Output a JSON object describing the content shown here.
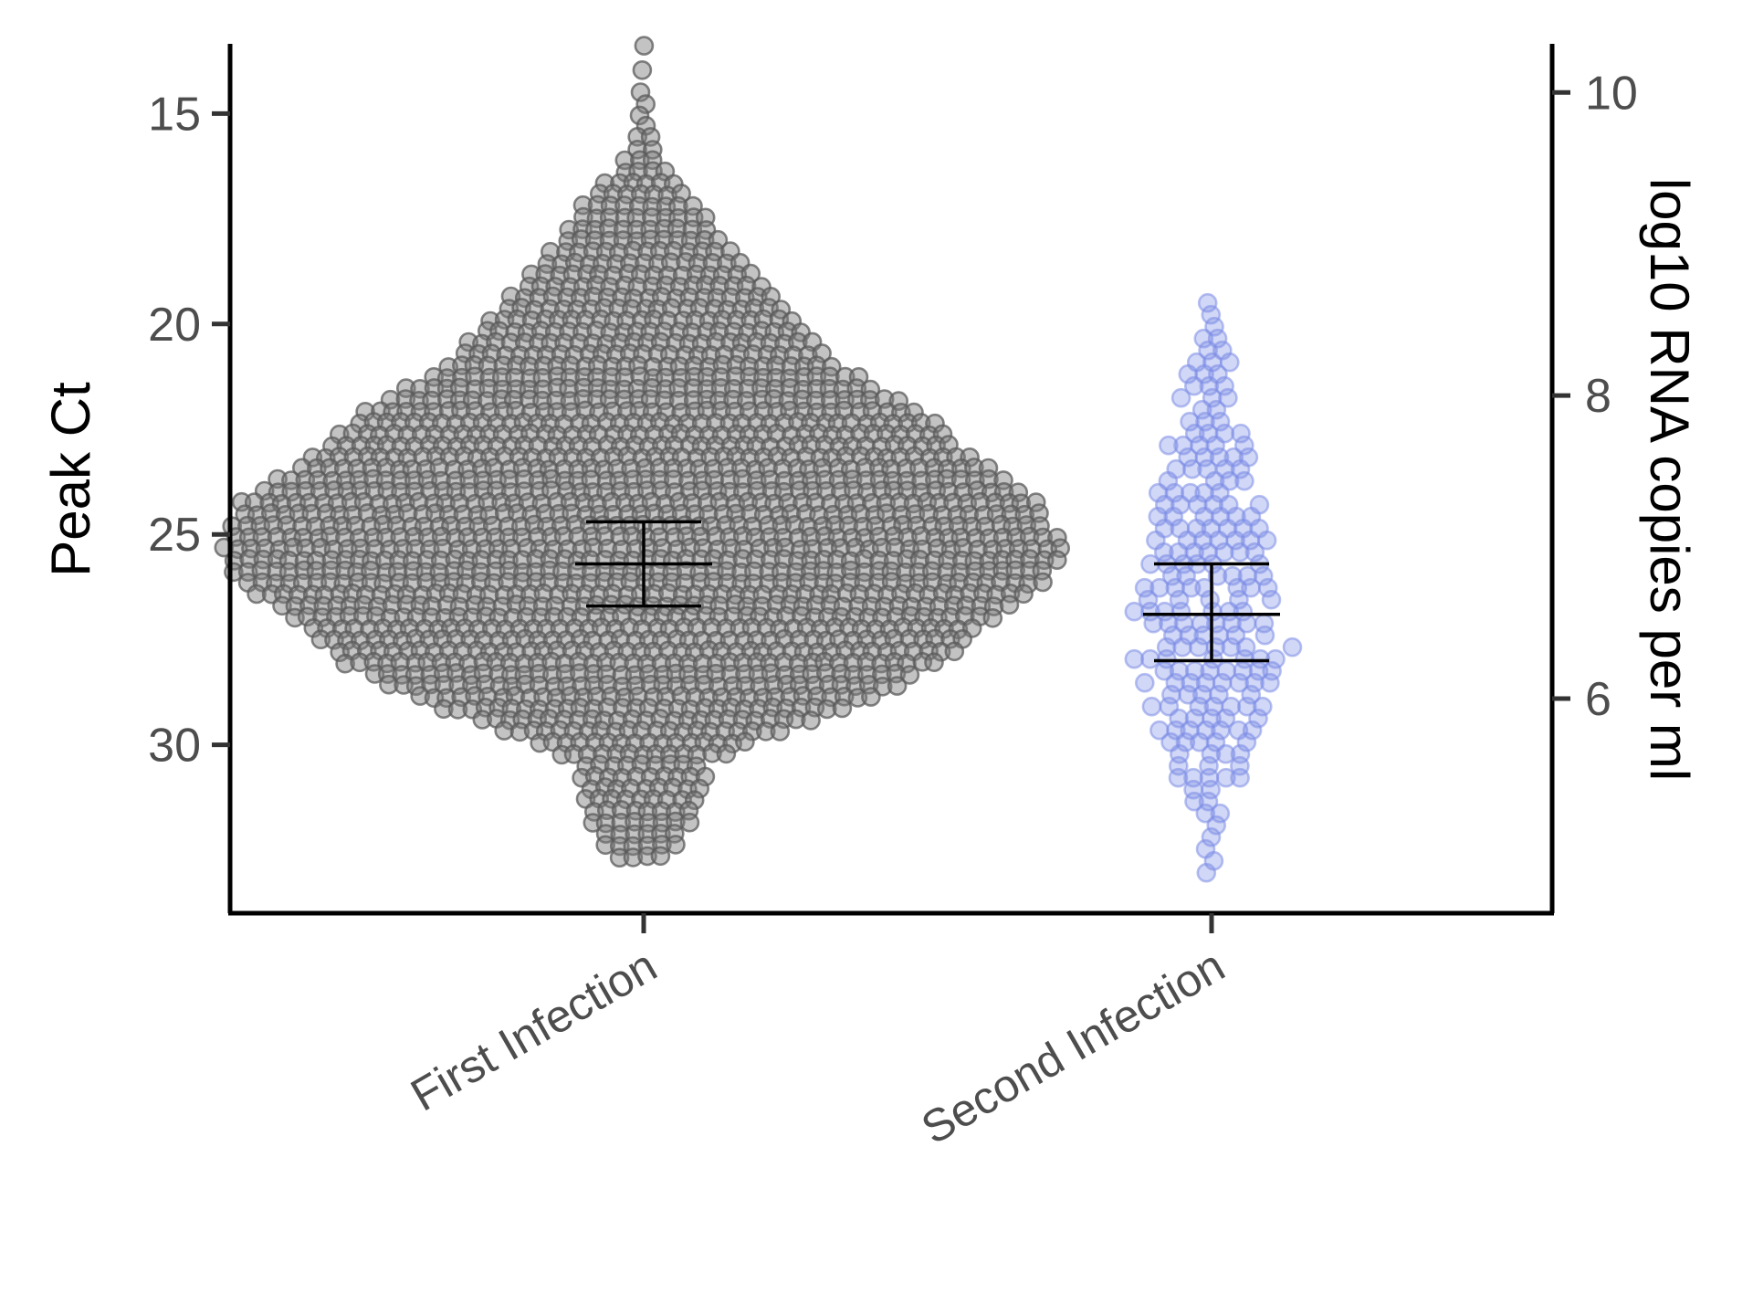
{
  "chart_data": {
    "type": "scatter",
    "subtype": "beeswarm",
    "title": "",
    "xlabel": "",
    "ylabel": "Peak Ct",
    "y2label": "log10 RNA copies per ml",
    "y_reversed": true,
    "ylim": [
      34,
      13.3
    ],
    "y_ticks": [
      "15",
      "20",
      "25",
      "30"
    ],
    "y2_ticks": [
      "10",
      "8",
      "6"
    ],
    "y2_tick_ct_positions": [
      14.5,
      21.7,
      28.9
    ],
    "categories": [
      "First Infection",
      "Second Infection"
    ],
    "grid": false,
    "legend": "none",
    "series": [
      {
        "category": "First Infection",
        "color": "#4d4d4d",
        "point_color": "#555555",
        "n_points_approx": 2400,
        "min": 13.4,
        "max": 32.7,
        "mean": 25.7,
        "ci": [
          24.7,
          26.7
        ]
      },
      {
        "category": "Second Infection",
        "color": "#7b8ce6",
        "point_color": "#7b8ce6",
        "n_points_approx": 300,
        "min": 19.5,
        "max": 33.1,
        "mean": 26.9,
        "ci": [
          25.7,
          28.0
        ]
      }
    ]
  }
}
